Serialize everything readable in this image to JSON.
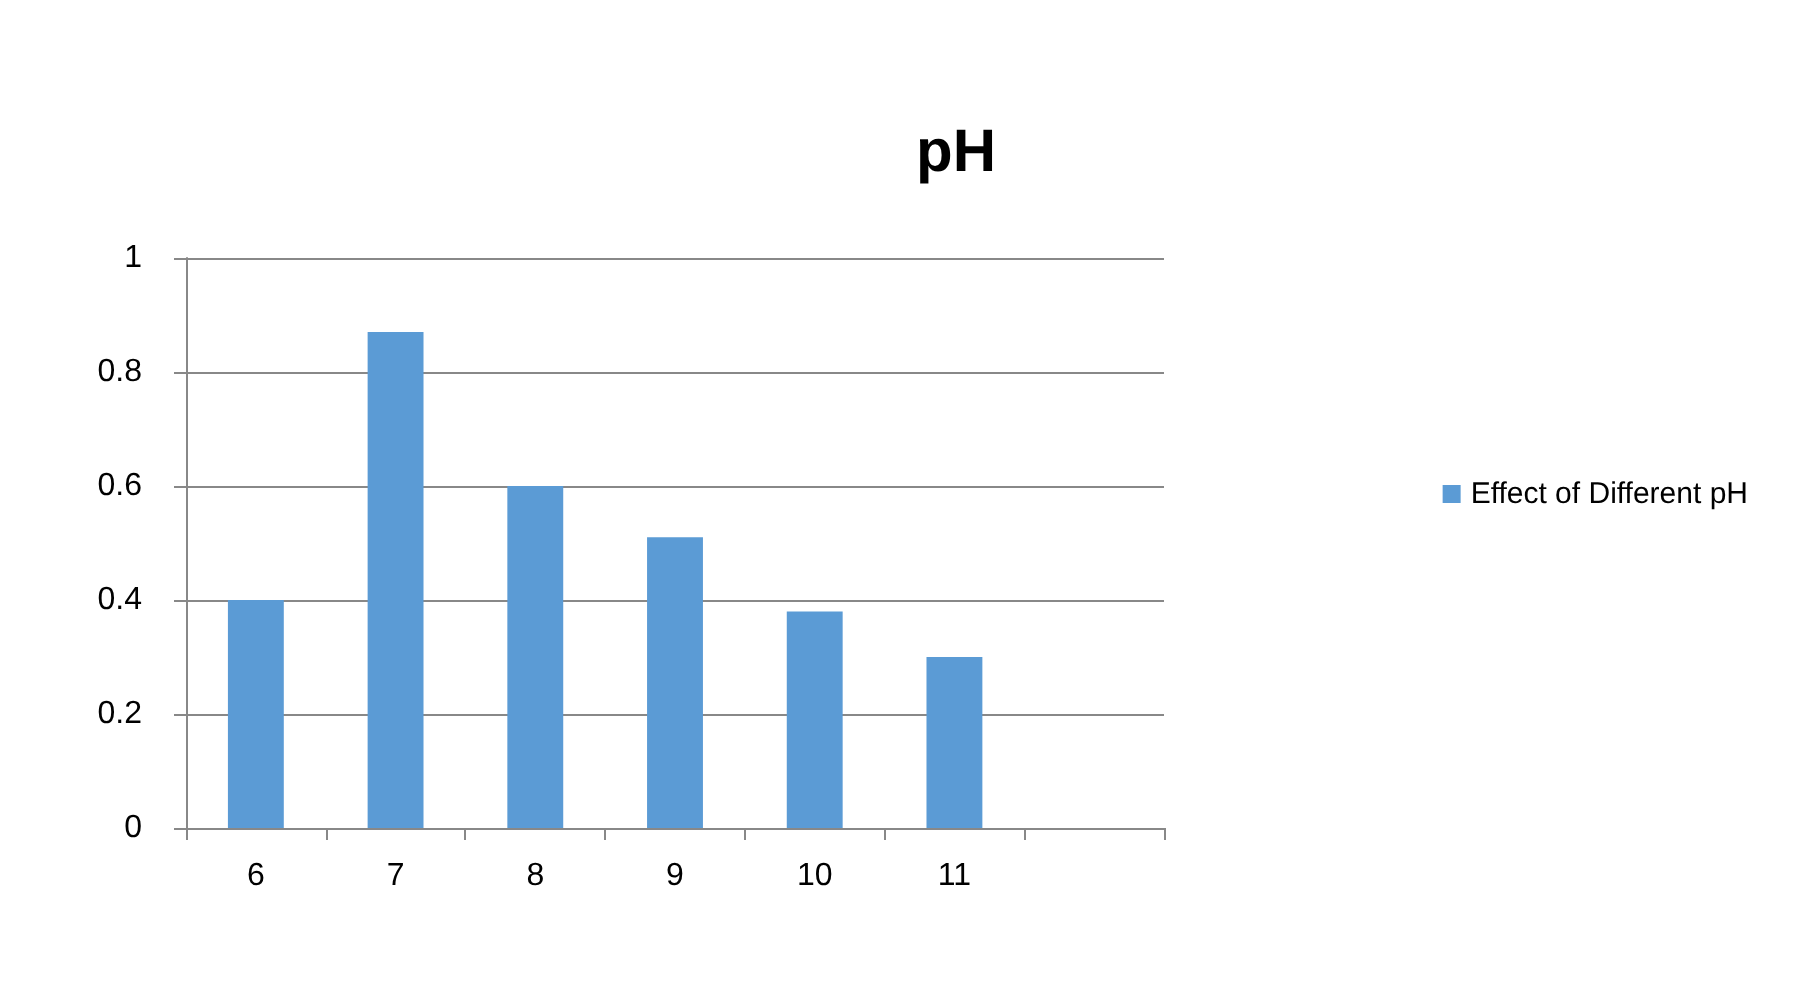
{
  "chart_data": {
    "type": "bar",
    "title": "pH",
    "categories": [
      "6",
      "7",
      "8",
      "9",
      "10",
      "11",
      null
    ],
    "series": [
      {
        "name": "Effect of Different pH",
        "color": "#5b9bd5",
        "values": [
          0.4,
          0.87,
          0.6,
          0.51,
          0.38,
          0.3,
          null
        ]
      }
    ],
    "ylim": [
      0,
      1
    ],
    "yticks": [
      0,
      0.2,
      0.4,
      0.6,
      0.8,
      1
    ],
    "grid": "y",
    "legend": "right"
  }
}
